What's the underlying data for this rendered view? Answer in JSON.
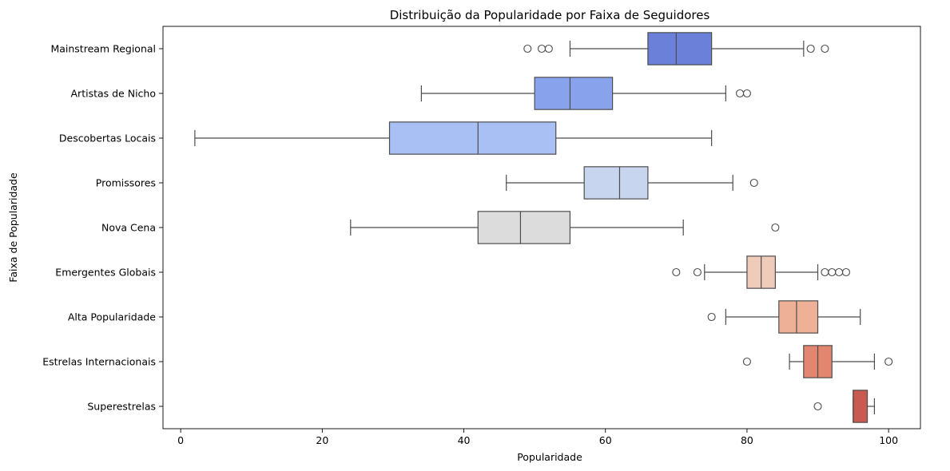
{
  "chart_data": {
    "type": "boxplot",
    "orientation": "horizontal",
    "title": "Distribuição da Popularidade por Faixa de Seguidores",
    "xlabel": "Popularidade",
    "ylabel": "Faixa de Popularidade",
    "xlim": [
      -2.5,
      104.5
    ],
    "xticks": [
      0,
      20,
      40,
      60,
      80,
      100
    ],
    "grid": false,
    "legend": "none",
    "categories": [
      "Mainstream Regional",
      "Artistas de Nicho",
      "Descobertas Locais",
      "Promissores",
      "Nova Cena",
      "Emergentes Globais",
      "Alta Popularidade",
      "Estrelas Internacionais",
      "Superestrelas"
    ],
    "boxes": [
      {
        "whislo": 55,
        "q1": 66,
        "med": 70,
        "q3": 75,
        "whishi": 88,
        "fliers": [
          49,
          51,
          52,
          89,
          91
        ],
        "color": "#6a80d9"
      },
      {
        "whislo": 34,
        "q1": 50,
        "med": 55,
        "q3": 61,
        "whishi": 77,
        "fliers": [
          79,
          80
        ],
        "color": "#88a3ec"
      },
      {
        "whislo": 2,
        "q1": 29.5,
        "med": 42,
        "q3": 53,
        "whishi": 75,
        "fliers": [],
        "color": "#a9c0f5"
      },
      {
        "whislo": 46,
        "q1": 57,
        "med": 62,
        "q3": 66,
        "whishi": 78,
        "fliers": [
          81
        ],
        "color": "#c8d5ef"
      },
      {
        "whislo": 24,
        "q1": 42,
        "med": 48,
        "q3": 55,
        "whishi": 71,
        "fliers": [
          84
        ],
        "color": "#dcdcdc"
      },
      {
        "whislo": 74,
        "q1": 80,
        "med": 82,
        "q3": 84,
        "whishi": 90,
        "fliers": [
          70,
          73,
          91,
          92,
          93,
          94
        ],
        "color": "#efcbb9"
      },
      {
        "whislo": 77,
        "q1": 84.5,
        "med": 87,
        "q3": 90,
        "whishi": 96,
        "fliers": [
          75
        ],
        "color": "#eeb097"
      },
      {
        "whislo": 86,
        "q1": 88,
        "med": 90,
        "q3": 92,
        "whishi": 98,
        "fliers": [
          80,
          100
        ],
        "color": "#e3866f"
      },
      {
        "whislo": 95,
        "q1": 95,
        "med": 95,
        "q3": 97,
        "whishi": 98,
        "fliers": [
          90
        ],
        "color": "#c95a51"
      }
    ]
  }
}
